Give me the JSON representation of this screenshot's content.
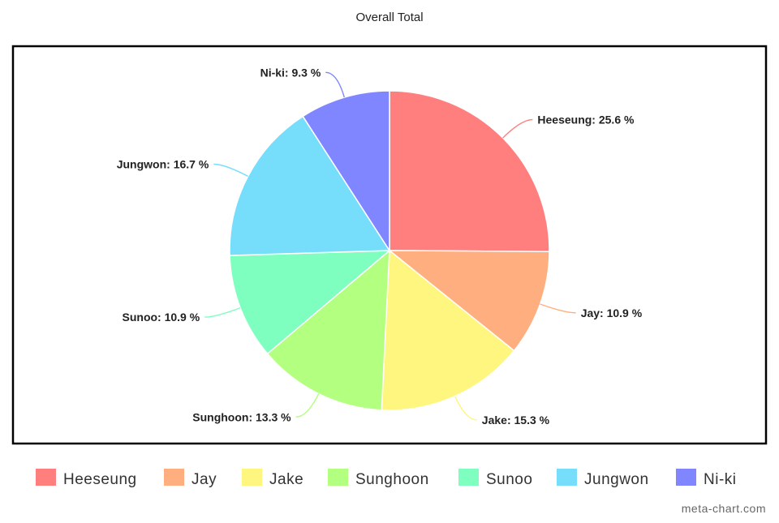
{
  "chart_data": {
    "type": "pie",
    "title": "Overall Total",
    "categories": [
      "Heeseung",
      "Jay",
      "Jake",
      "Sunghoon",
      "Sunoo",
      "Jungwon",
      "Ni-ki"
    ],
    "values": [
      25.6,
      10.9,
      15.3,
      13.3,
      10.9,
      16.7,
      9.3
    ],
    "unit": "%",
    "colors": [
      "#ff7f7f",
      "#ffaf7f",
      "#fff67f",
      "#b3ff7f",
      "#7fffbf",
      "#76ddfb",
      "#7f86ff"
    ],
    "slice_labels": [
      "Heeseung: 25.6 %",
      "Jay: 10.9 %",
      "Jake: 15.3 %",
      "Sunghoon: 13.3 %",
      "Sunoo: 10.9 %",
      "Jungwon: 16.7 %",
      "Ni-ki: 9.3 %"
    ],
    "legend_position": "bottom"
  },
  "watermark": "meta-chart.com"
}
